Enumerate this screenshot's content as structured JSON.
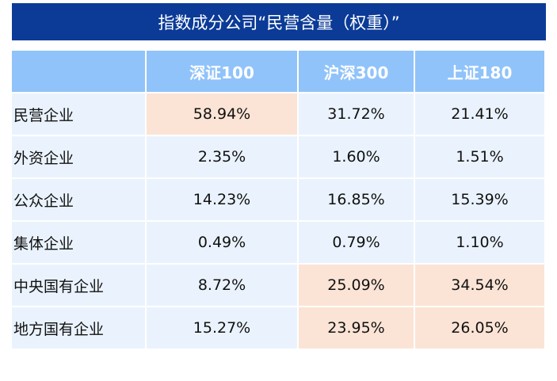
{
  "title": "指数成分公司“民营含量（权重）”",
  "highlight_color": "#fbe4d6",
  "header_color": "#90c3f9",
  "title_color": "#0b3b97",
  "chart_data": {
    "type": "table",
    "columns": [
      "深证100",
      "沪深300",
      "上证180"
    ],
    "rows": [
      {
        "label": "民营企业",
        "values": [
          "58.94%",
          "31.72%",
          "21.41%"
        ],
        "highlight": [
          true,
          false,
          false
        ]
      },
      {
        "label": "外资企业",
        "values": [
          "2.35%",
          "1.60%",
          "1.51%"
        ],
        "highlight": [
          false,
          false,
          false
        ]
      },
      {
        "label": "公众企业",
        "values": [
          "14.23%",
          "16.85%",
          "15.39%"
        ],
        "highlight": [
          false,
          false,
          false
        ]
      },
      {
        "label": "集体企业",
        "values": [
          "0.49%",
          "0.79%",
          "1.10%"
        ],
        "highlight": [
          false,
          false,
          false
        ]
      },
      {
        "label": "中央国有企业",
        "values": [
          "8.72%",
          "25.09%",
          "34.54%"
        ],
        "highlight": [
          false,
          true,
          true
        ]
      },
      {
        "label": "地方国有企业",
        "values": [
          "15.27%",
          "23.95%",
          "26.05%"
        ],
        "highlight": [
          false,
          true,
          true
        ]
      }
    ]
  }
}
